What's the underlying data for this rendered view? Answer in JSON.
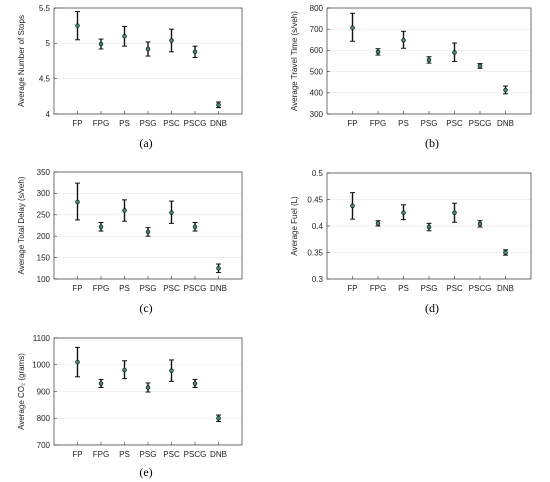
{
  "figure": {
    "panel_labels": [
      "(a)",
      "(b)",
      "(c)",
      "(d)",
      "(e)"
    ]
  },
  "colors": {
    "axis": "#333333",
    "grid": "#e4e4e4",
    "errorbar": "#111111",
    "marker_fill": "#3d8f7d",
    "marker_edge": "#111111"
  },
  "chart_data": [
    {
      "type": "scatter",
      "panel": "(a)",
      "categories": [
        "FP",
        "FPG",
        "PS",
        "PSG",
        "PSC",
        "PSCG",
        "DNB"
      ],
      "ylabel": "Average Number of Stops",
      "ylim": [
        4,
        5.5
      ],
      "yticks": [
        4,
        4.5,
        5,
        5.5
      ],
      "grid": true,
      "series": [
        {
          "mean": [
            5.25,
            4.99,
            5.1,
            4.92,
            5.04,
            4.88,
            4.13
          ],
          "lower": [
            5.05,
            4.92,
            4.96,
            4.82,
            4.88,
            4.8,
            4.09
          ],
          "upper": [
            5.45,
            5.06,
            5.24,
            5.02,
            5.2,
            4.96,
            4.17
          ]
        }
      ]
    },
    {
      "type": "scatter",
      "panel": "(b)",
      "categories": [
        "FP",
        "FPG",
        "PS",
        "PSG",
        "PSC",
        "PSCG",
        "DNB"
      ],
      "ylabel": "Average Travel Time (s/veh)",
      "ylim": [
        300,
        800
      ],
      "yticks": [
        300,
        400,
        500,
        600,
        700,
        800
      ],
      "grid": true,
      "series": [
        {
          "mean": [
            707,
            593,
            648,
            555,
            590,
            527,
            413
          ],
          "lower": [
            643,
            578,
            610,
            540,
            548,
            516,
            395
          ],
          "upper": [
            775,
            608,
            690,
            570,
            635,
            538,
            432
          ]
        }
      ]
    },
    {
      "type": "scatter",
      "panel": "(c)",
      "categories": [
        "FP",
        "FPG",
        "PS",
        "PSG",
        "PSC",
        "PSCG",
        "DNB"
      ],
      "ylabel": "Average Total Delay (s/veh)",
      "ylim": [
        100,
        350
      ],
      "yticks": [
        100,
        150,
        200,
        250,
        300,
        350
      ],
      "grid": true,
      "series": [
        {
          "mean": [
            280,
            222,
            260,
            210,
            255,
            222,
            125
          ],
          "lower": [
            238,
            212,
            235,
            200,
            230,
            212,
            115
          ],
          "upper": [
            324,
            232,
            285,
            220,
            282,
            232,
            135
          ]
        }
      ]
    },
    {
      "type": "scatter",
      "panel": "(d)",
      "categories": [
        "FP",
        "FPG",
        "PS",
        "PSG",
        "PSC",
        "PSCG",
        "DNB"
      ],
      "ylabel": "Average Fuel (L)",
      "ylim": [
        0.3,
        0.5
      ],
      "yticks": [
        0.3,
        0.35,
        0.4,
        0.45,
        0.5
      ],
      "grid": true,
      "series": [
        {
          "mean": [
            0.438,
            0.405,
            0.425,
            0.398,
            0.425,
            0.404,
            0.35
          ],
          "lower": [
            0.413,
            0.4,
            0.412,
            0.391,
            0.407,
            0.398,
            0.345
          ],
          "upper": [
            0.463,
            0.41,
            0.44,
            0.405,
            0.443,
            0.41,
            0.355
          ]
        }
      ]
    },
    {
      "type": "scatter",
      "panel": "(e)",
      "categories": [
        "FP",
        "FPG",
        "PS",
        "PSG",
        "PSC",
        "PSCG",
        "DNB"
      ],
      "ylabel": "Average CO₂ (grams)",
      "ylim": [
        700,
        1100
      ],
      "yticks": [
        700,
        800,
        900,
        1000,
        1100
      ],
      "grid": true,
      "series": [
        {
          "mean": [
            1010,
            930,
            980,
            915,
            978,
            930,
            800
          ],
          "lower": [
            955,
            915,
            948,
            898,
            938,
            915,
            788
          ],
          "upper": [
            1065,
            945,
            1015,
            932,
            1018,
            945,
            812
          ]
        }
      ]
    }
  ]
}
